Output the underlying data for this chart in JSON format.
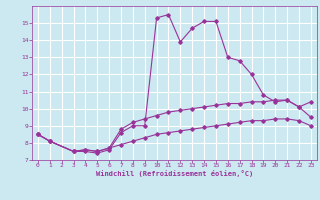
{
  "xlabel": "Windchill (Refroidissement éolien,°C)",
  "ylabel": "",
  "background_color": "#cce8f0",
  "grid_color": "#ffffff",
  "line_color": "#993399",
  "xlim": [
    -0.5,
    23.5
  ],
  "ylim": [
    7,
    16
  ],
  "yticks": [
    7,
    8,
    9,
    10,
    11,
    12,
    13,
    14,
    15
  ],
  "xticks": [
    0,
    1,
    2,
    3,
    4,
    5,
    6,
    7,
    8,
    9,
    10,
    11,
    12,
    13,
    14,
    15,
    16,
    17,
    18,
    19,
    20,
    21,
    22,
    23
  ],
  "line1_x": [
    0,
    1,
    3,
    4,
    5,
    6,
    7,
    8,
    9,
    10,
    11,
    12,
    13,
    14,
    15,
    16,
    17,
    18,
    19,
    20,
    21,
    22,
    23
  ],
  "line1_y": [
    8.5,
    8.1,
    7.5,
    7.5,
    7.4,
    7.6,
    8.6,
    9.0,
    9.0,
    15.3,
    15.5,
    13.9,
    14.7,
    15.1,
    15.1,
    13.0,
    12.8,
    12.0,
    10.8,
    10.4,
    10.5,
    10.1,
    10.4
  ],
  "line2_x": [
    0,
    1,
    3,
    4,
    5,
    6,
    7,
    8,
    9,
    10,
    11,
    12,
    13,
    14,
    15,
    16,
    17,
    18,
    19,
    20,
    21,
    22,
    23
  ],
  "line2_y": [
    8.5,
    8.1,
    7.5,
    7.6,
    7.5,
    7.7,
    8.8,
    9.2,
    9.4,
    9.6,
    9.8,
    9.9,
    10.0,
    10.1,
    10.2,
    10.3,
    10.3,
    10.4,
    10.4,
    10.5,
    10.5,
    10.1,
    9.5
  ],
  "line3_x": [
    0,
    1,
    3,
    4,
    5,
    6,
    7,
    8,
    9,
    10,
    11,
    12,
    13,
    14,
    15,
    16,
    17,
    18,
    19,
    20,
    21,
    22,
    23
  ],
  "line3_y": [
    8.5,
    8.1,
    7.5,
    7.6,
    7.5,
    7.7,
    7.9,
    8.1,
    8.3,
    8.5,
    8.6,
    8.7,
    8.8,
    8.9,
    9.0,
    9.1,
    9.2,
    9.3,
    9.3,
    9.4,
    9.4,
    9.3,
    9.0
  ]
}
